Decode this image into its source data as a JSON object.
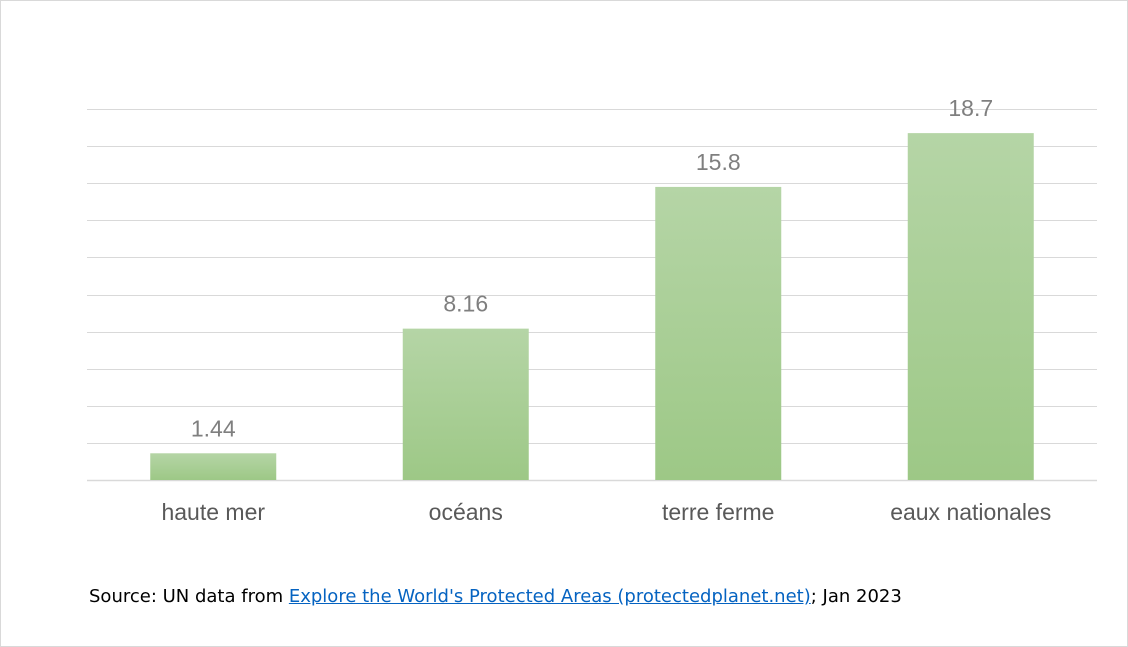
{
  "chart_data": {
    "type": "bar",
    "categories": [
      "haute mer",
      "océans",
      "terre ferme",
      "eaux nationales"
    ],
    "values": [
      1.44,
      8.16,
      15.8,
      18.7
    ],
    "value_labels": [
      "1.44",
      "8.16",
      "15.8",
      "18.7"
    ],
    "title": "",
    "xlabel": "",
    "ylabel": "",
    "ylim": [
      0,
      20
    ],
    "grid": true,
    "legend": "none",
    "bar_color_top": "#b5d5a6",
    "bar_color_bottom": "#9dc886",
    "grid_color": "#d9d9d9"
  },
  "source": {
    "prefix": "Source: UN data from ",
    "link_text": "Explore the World's Protected Areas (protectedplanet.net)",
    "suffix": "; Jan 2023",
    "link_color": "#0563c1"
  }
}
